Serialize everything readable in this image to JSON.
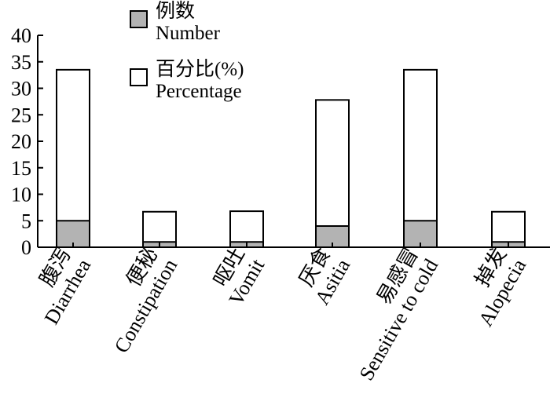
{
  "chart_data": {
    "type": "bar",
    "categories": [
      {
        "zh": "腹泻",
        "en": "Diarrhea"
      },
      {
        "zh": "便秘",
        "en": "Constipation"
      },
      {
        "zh": "呕吐",
        "en": "Vomit"
      },
      {
        "zh": "厌食",
        "en": "Asitia"
      },
      {
        "zh": "易感冒",
        "en": "Sensitive to cold"
      },
      {
        "zh": "掉发",
        "en": "Alopecia"
      }
    ],
    "series": [
      {
        "name": "例数 Number",
        "values": [
          5,
          1,
          1,
          4,
          5,
          1
        ],
        "color": "#b3b3b3"
      },
      {
        "name": "百分比(%) Percentage",
        "values": [
          33.5,
          6.7,
          6.8,
          27.8,
          33.5,
          6.7
        ],
        "color": "#ffffff"
      }
    ],
    "legend": [
      {
        "zh": "例数",
        "en": "Number",
        "fill": "#b3b3b3"
      },
      {
        "zh": "百分比(%)",
        "en": "Percentage",
        "fill": "#ffffff"
      }
    ],
    "y_ticks": [
      "0",
      "5",
      "10",
      "15",
      "20",
      "25",
      "30",
      "35",
      "40"
    ],
    "ylim": [
      0,
      40
    ],
    "legend_position": "top-left",
    "grid": false,
    "title": "",
    "xlabel": "",
    "ylabel": ""
  }
}
